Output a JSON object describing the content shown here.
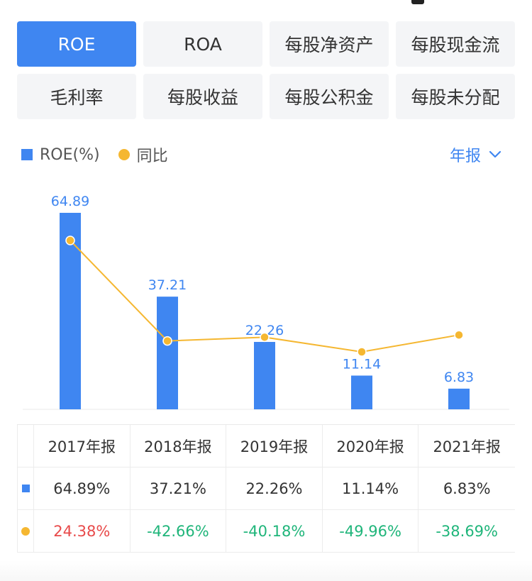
{
  "tabs": [
    {
      "label": "ROE",
      "active": true
    },
    {
      "label": "ROA",
      "active": false
    },
    {
      "label": "每股净资产",
      "active": false
    },
    {
      "label": "每股现金流",
      "active": false
    },
    {
      "label": "毛利率",
      "active": false
    },
    {
      "label": "每股收益",
      "active": false
    },
    {
      "label": "每股公积金",
      "active": false
    },
    {
      "label": "每股未分配",
      "active": false
    }
  ],
  "legend": {
    "bar_label": "ROE(%)",
    "line_label": "同比"
  },
  "period_selector": {
    "label": "年报",
    "icon": "chevron-down-icon"
  },
  "colors": {
    "accent": "#3f86f1",
    "line": "#f5b731",
    "positive": "#e84a4a",
    "negative": "#1fb57a"
  },
  "chart_data": {
    "type": "bar",
    "categories": [
      "2017年报",
      "2018年报",
      "2019年报",
      "2020年报",
      "2021年报"
    ],
    "series": [
      {
        "name": "ROE(%)",
        "type": "bar",
        "values": [
          64.89,
          37.21,
          22.26,
          11.14,
          6.83
        ],
        "labels": [
          "64.89",
          "37.21",
          "22.26",
          "11.14",
          "6.83"
        ]
      },
      {
        "name": "同比",
        "type": "line",
        "values": [
          24.38,
          -42.66,
          -40.18,
          -49.96,
          -38.69
        ]
      }
    ],
    "legend_position": "top-left",
    "grid": false
  },
  "table": {
    "headers": [
      "2017年报",
      "2018年报",
      "2019年报",
      "2020年报",
      "2021年报"
    ],
    "rows": [
      {
        "marker": "bar",
        "cells": [
          "64.89%",
          "37.21%",
          "22.26%",
          "11.14%",
          "6.83%"
        ]
      },
      {
        "marker": "line",
        "cells": [
          "24.38%",
          "-42.66%",
          "-40.18%",
          "-49.96%",
          "-38.69%"
        ]
      }
    ]
  }
}
